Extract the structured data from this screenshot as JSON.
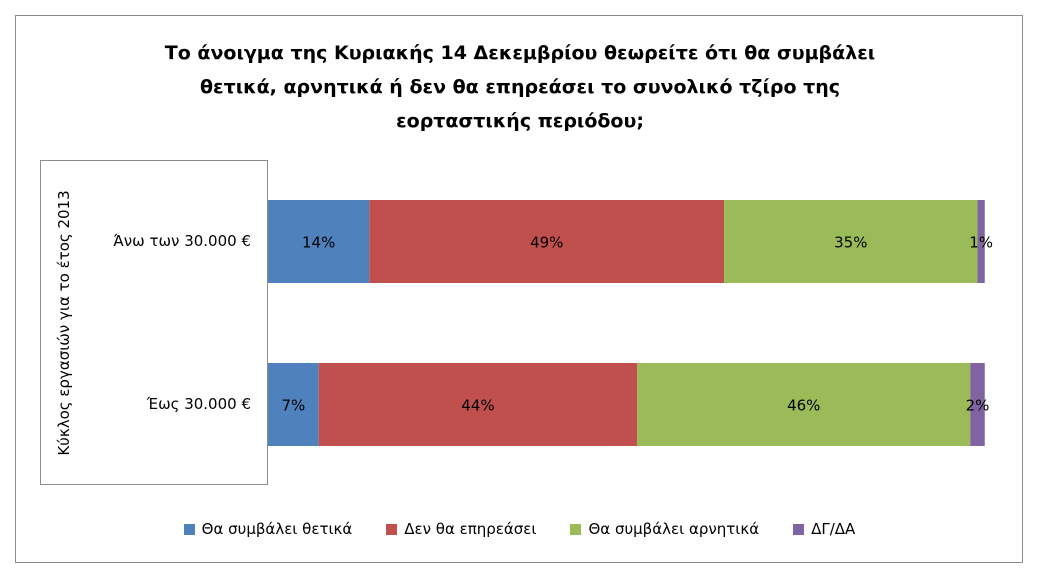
{
  "chart_data": {
    "type": "bar",
    "orientation": "horizontal",
    "stacked": true,
    "percent_stacked": true,
    "title": "Το άνοιγμα της Κυριακής 14 Δεκεμβρίου θεωρείτε ότι θα συμβάλει θετικά, αρνητικά ή δεν θα επηρεάσει το συνολικό τζίρο της εορταστικής περιόδου;",
    "title_lines": [
      "Το άνοιγμα της Κυριακής 14 Δεκεμβρίου θεωρείτε ότι θα συμβάλει",
      "θετικά, αρνητικά ή δεν θα επηρεάσει το συνολικό τζίρο της",
      "εορταστικής περιόδου;"
    ],
    "ylabel": "Κύκλος εργασιών για το έτος 2013",
    "xlabel": "",
    "categories": [
      "Άνω των 30.000 €",
      "Έως 30.000 €"
    ],
    "series": [
      {
        "name": "Θα συμβάλει θετικά",
        "color": "#4f81bd",
        "values": [
          14,
          7
        ],
        "labels": [
          "14%",
          "7%"
        ]
      },
      {
        "name": "Δεν θα επηρεάσει",
        "color": "#c0504d",
        "values": [
          49,
          44
        ],
        "labels": [
          "49%",
          "44%"
        ]
      },
      {
        "name": "Θα συμβάλει αρνητικά",
        "color": "#9bbb59",
        "values": [
          35,
          46
        ],
        "labels": [
          "35%",
          "46%"
        ]
      },
      {
        "name": "ΔΓ/ΔΑ",
        "color": "#8064a2",
        "values": [
          1,
          2
        ],
        "labels": [
          "1%",
          "2%"
        ]
      }
    ],
    "xlim": [
      0,
      100
    ],
    "grid": false,
    "legend_position": "bottom"
  }
}
